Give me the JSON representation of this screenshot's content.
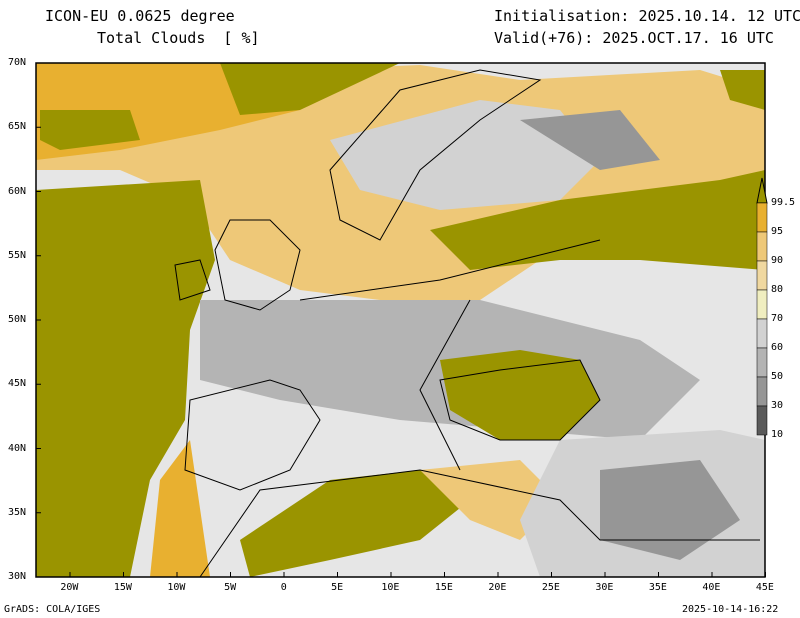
{
  "header": {
    "model": "ICON-EU 0.0625 degree",
    "field": "Total Clouds  [ %]",
    "init": "Initialisation: 2025.10.14. 12 UTC",
    "valid": "Valid(+76): 2025.OCT.17. 16 UTC"
  },
  "footer": {
    "credit": "GrADS: COLA/IGES",
    "timestamp": "2025-10-14-16:22"
  },
  "lat_ticks": [
    "70N",
    "65N",
    "60N",
    "55N",
    "50N",
    "45N",
    "40N",
    "35N",
    "30N"
  ],
  "lon_ticks": [
    "20W",
    "15W",
    "10W",
    "5W",
    "0",
    "5E",
    "10E",
    "15E",
    "20E",
    "25E",
    "30E",
    "35E",
    "40E",
    "45E"
  ],
  "colorbar": {
    "labels": [
      "99.5",
      "95",
      "90",
      "80",
      "70",
      "60",
      "50",
      "30",
      "10"
    ],
    "colors": [
      "#e8b030",
      "#eec878",
      "#f0d8a0",
      "#f0eec0",
      "#d2d2d2",
      "#b4b4b4",
      "#969696",
      "#5a5a5a"
    ],
    "top_color": "#9a9400",
    "background_color": "#e6e6e6"
  }
}
